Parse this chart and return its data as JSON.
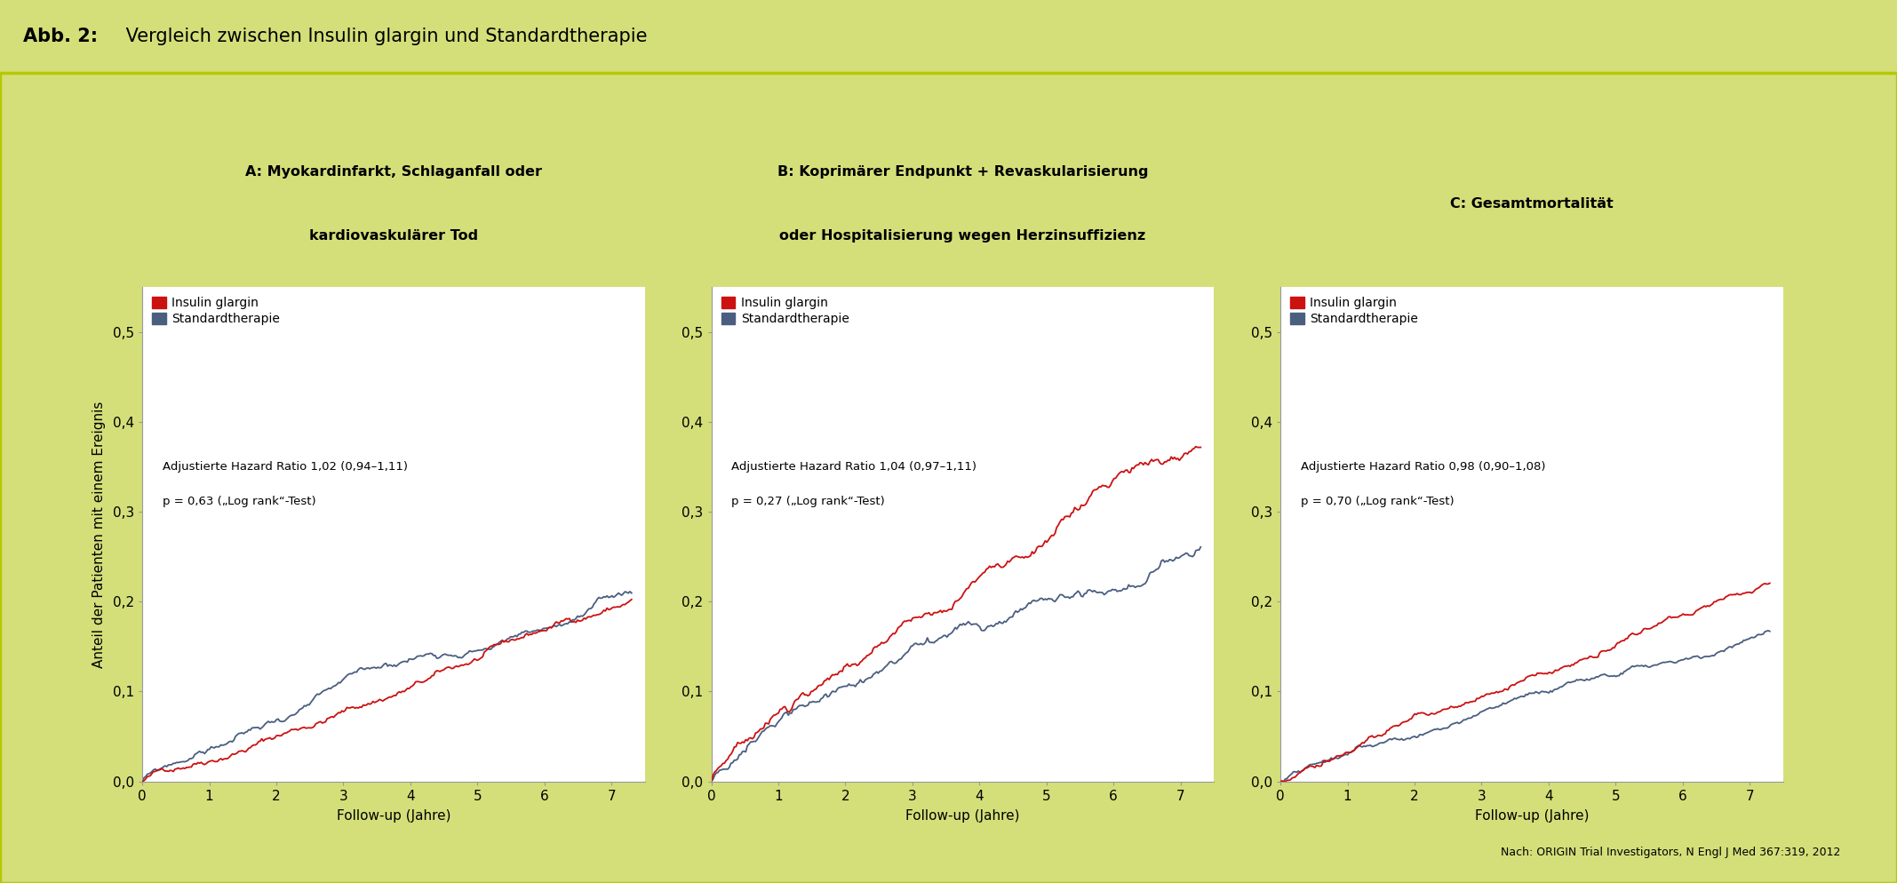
{
  "title_bold": "Abb. 2:",
  "title_normal": " Vergleich zwischen Insulin glargin und Standardtherapie",
  "title_bg": "#b5c800",
  "outer_bg": "#d4df7a",
  "inner_bg": "#ffffff",
  "border_color": "#b5c800",
  "ylabel": "Anteil der Patienten mit einem Ereignis",
  "xlabel": "Follow-up (Jahre)",
  "footnote_prefix": "Nach: ",
  "footnote_italic1": "ORIGIN",
  "footnote_mid": " Trial Investigators, ",
  "footnote_italic2": "N Engl J Med",
  "footnote_end": " 367:319, 2012",
  "panels": [
    {
      "title_line1": "A: Myokardinfarkt, Schlaganfall oder",
      "title_line2": "kardiovaskulärer Tod",
      "hazard_text": "Adjustierte Hazard Ratio 1,02 (0,94–1,11)",
      "p_text": "p = 0,63 („Log rank“-Test)"
    },
    {
      "title_line1": "B: Koprimärer Endpunkt + Revaskularisierung",
      "title_line2": "oder Hospitalisierung wegen Herzinsuffizienz",
      "hazard_text": "Adjustierte Hazard Ratio 1,04 (0,97–1,11)",
      "p_text": "p = 0,27 („Log rank“-Test)"
    },
    {
      "title_line1": "C: Gesamtmortalität",
      "title_line2": "",
      "hazard_text": "Adjustierte Hazard Ratio 0,98 (0,90–1,08)",
      "p_text": "p = 0,70 („Log rank“-Test)"
    }
  ],
  "red_color": "#cc1111",
  "blue_color": "#4a5e80",
  "xlim": [
    0,
    7.5
  ],
  "ylim": [
    0,
    0.55
  ],
  "yticks": [
    0.0,
    0.1,
    0.2,
    0.3,
    0.4,
    0.5
  ],
  "xticks": [
    0,
    1,
    2,
    3,
    4,
    5,
    6,
    7
  ],
  "legend_label_red": "Insulin glargin",
  "legend_label_blue": "Standardtherapie"
}
